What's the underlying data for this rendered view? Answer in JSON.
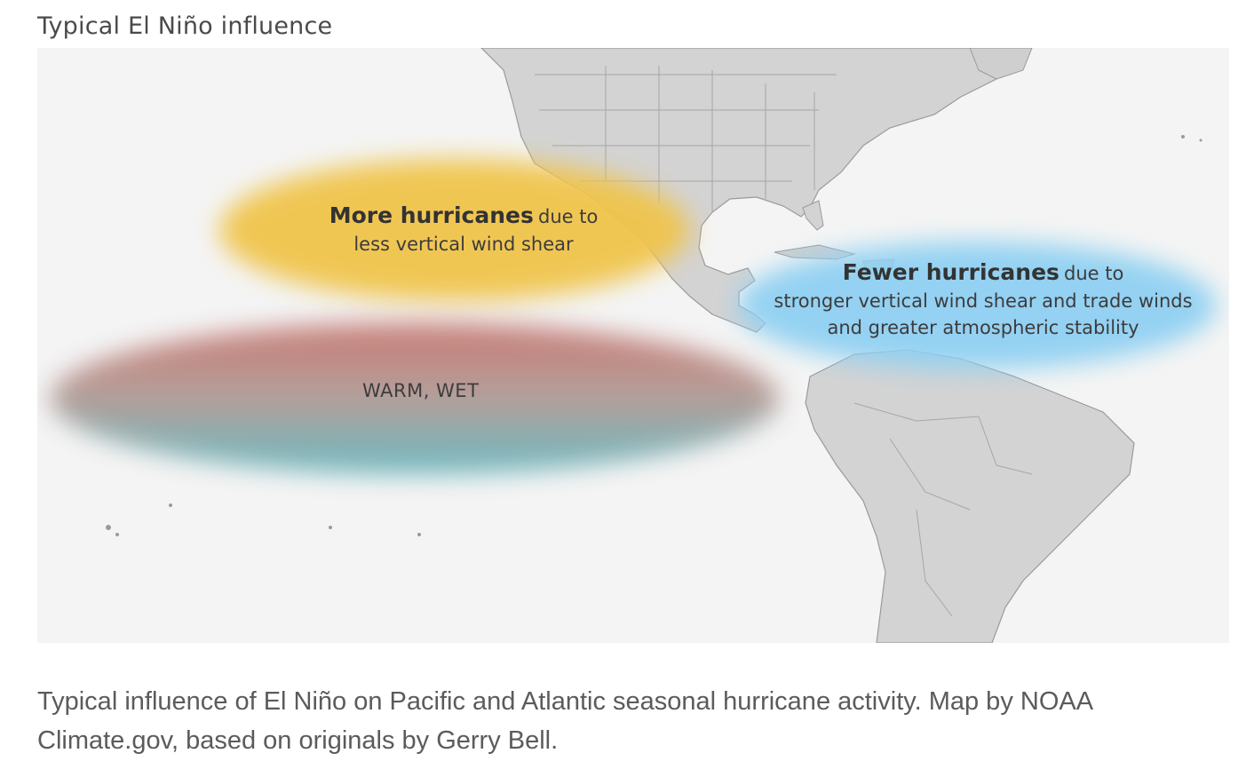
{
  "title": "Typical El Niño influence",
  "labels": {
    "pacific_strong": "More hurricanes",
    "pacific_rest": "due to",
    "pacific_line2": "less vertical wind shear",
    "atlantic_strong": "Fewer hurricanes",
    "atlantic_rest": "due to",
    "atlantic_line2": "stronger vertical wind shear and trade winds",
    "atlantic_line3": "and greater atmospheric stability",
    "warm_wet": "WARM, WET"
  },
  "caption": "Typical influence of El Niño on Pacific and Atlantic seasonal hurricane activity. Map by NOAA Climate.gov, based on originals by Gerry Bell.",
  "colors": {
    "more_hurricanes": "#f0c44c",
    "fewer_hurricanes": "#8fd0f2",
    "warm": "#c4706a",
    "wet": "#62b5bd",
    "land": "#d0d0d0",
    "ocean": "#f4f4f4"
  }
}
